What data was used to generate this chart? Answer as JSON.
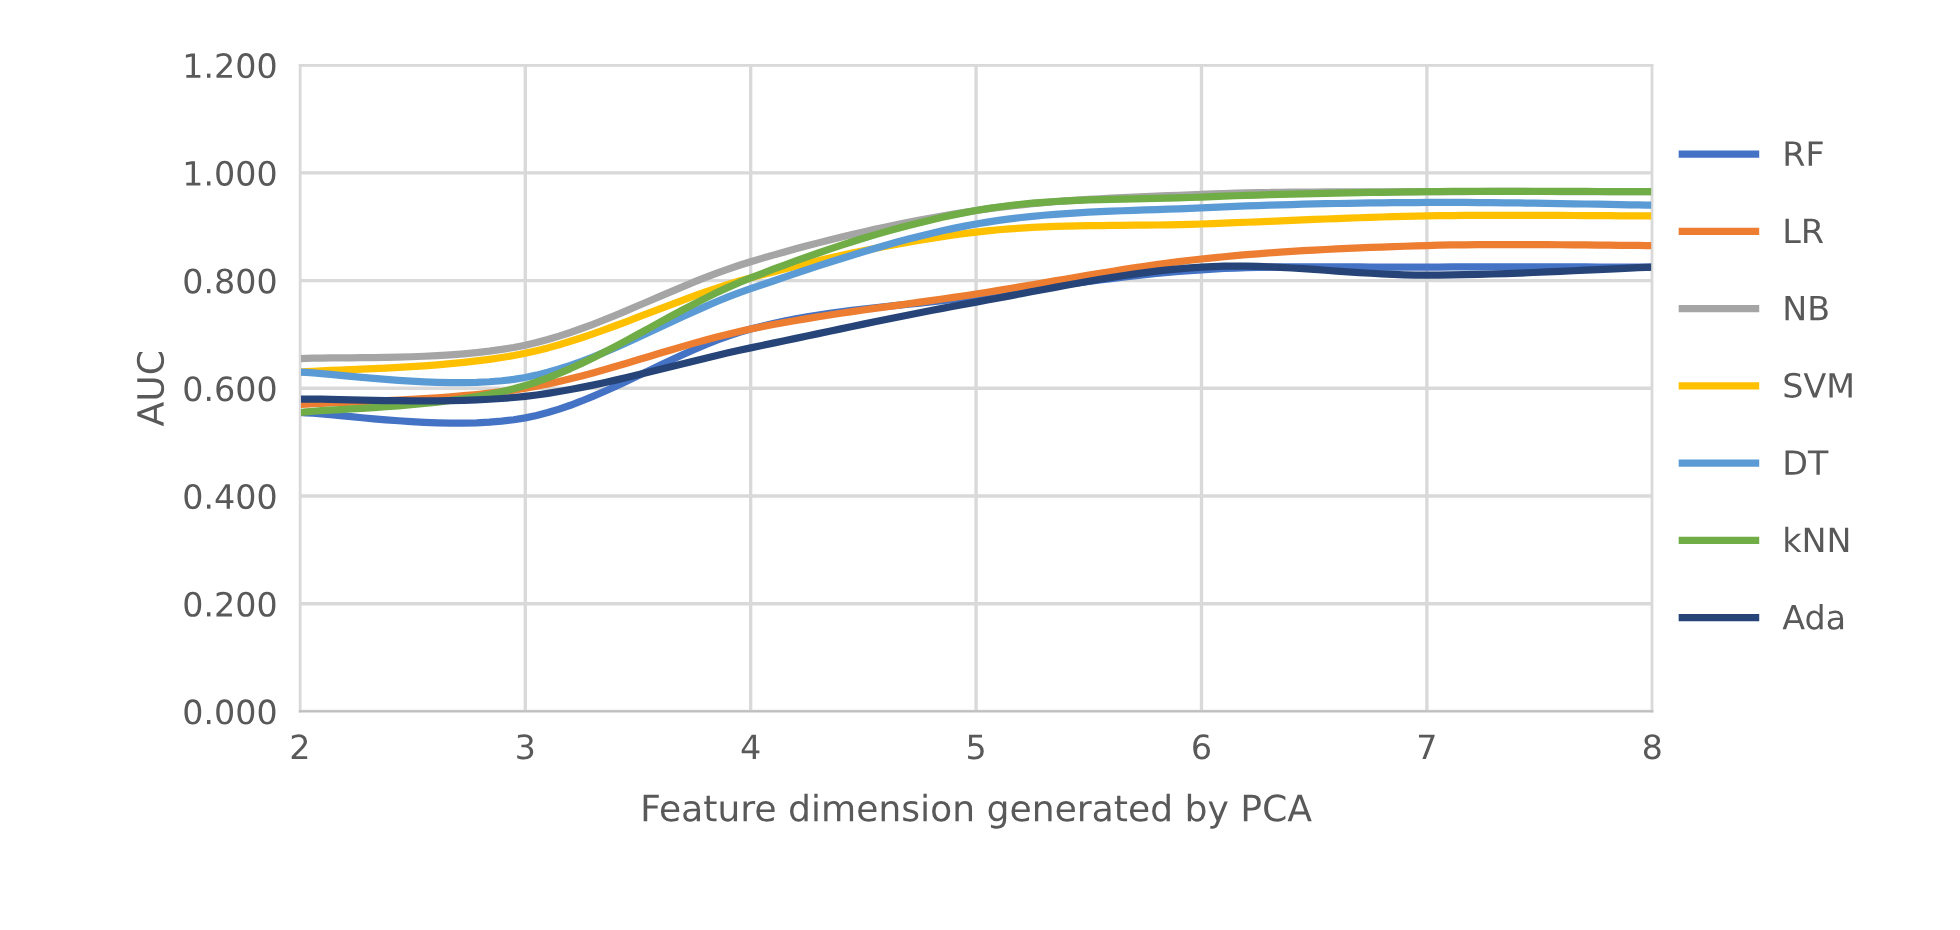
{
  "chart_data": {
    "type": "line",
    "xlabel": "Feature dimension generated by PCA",
    "ylabel": "AUC",
    "x": [
      2,
      3,
      4,
      5,
      6,
      7,
      8
    ],
    "xlim": [
      2,
      8
    ],
    "xticks": [
      2,
      3,
      4,
      5,
      6,
      7,
      8
    ],
    "ylim": [
      0,
      1.2
    ],
    "yticks": [
      {
        "value": 0,
        "label": "0.000"
      },
      {
        "value": 0.2,
        "label": "0.200"
      },
      {
        "value": 0.4,
        "label": "0.400"
      },
      {
        "value": 0.6,
        "label": "0.600"
      },
      {
        "value": 0.8,
        "label": "0.800"
      },
      {
        "value": 1.0,
        "label": "1.000"
      },
      {
        "value": 1.2,
        "label": "1.200"
      }
    ],
    "grid": true,
    "legend": "right",
    "marker": "none",
    "line_style": "solid",
    "series": [
      {
        "name": "RF",
        "color": "#4472c4",
        "values": [
          0.555,
          0.545,
          0.71,
          0.77,
          0.82,
          0.825,
          0.825
        ]
      },
      {
        "name": "LR",
        "color": "#ed7d31",
        "values": [
          0.57,
          0.6,
          0.71,
          0.775,
          0.84,
          0.865,
          0.865
        ]
      },
      {
        "name": "NB",
        "color": "#a5a5a5",
        "values": [
          0.655,
          0.68,
          0.835,
          0.93,
          0.96,
          0.965,
          0.965
        ]
      },
      {
        "name": "SVM",
        "color": "#ffc000",
        "values": [
          0.63,
          0.665,
          0.805,
          0.89,
          0.905,
          0.92,
          0.92
        ]
      },
      {
        "name": "DT",
        "color": "#5b9bd5",
        "values": [
          0.63,
          0.62,
          0.785,
          0.905,
          0.935,
          0.945,
          0.94
        ]
      },
      {
        "name": "kNN",
        "color": "#70ad47",
        "values": [
          0.555,
          0.605,
          0.805,
          0.93,
          0.955,
          0.965,
          0.965
        ]
      },
      {
        "name": "Ada",
        "color": "#264478",
        "values": [
          0.58,
          0.585,
          0.675,
          0.76,
          0.825,
          0.81,
          0.825
        ]
      }
    ]
  }
}
